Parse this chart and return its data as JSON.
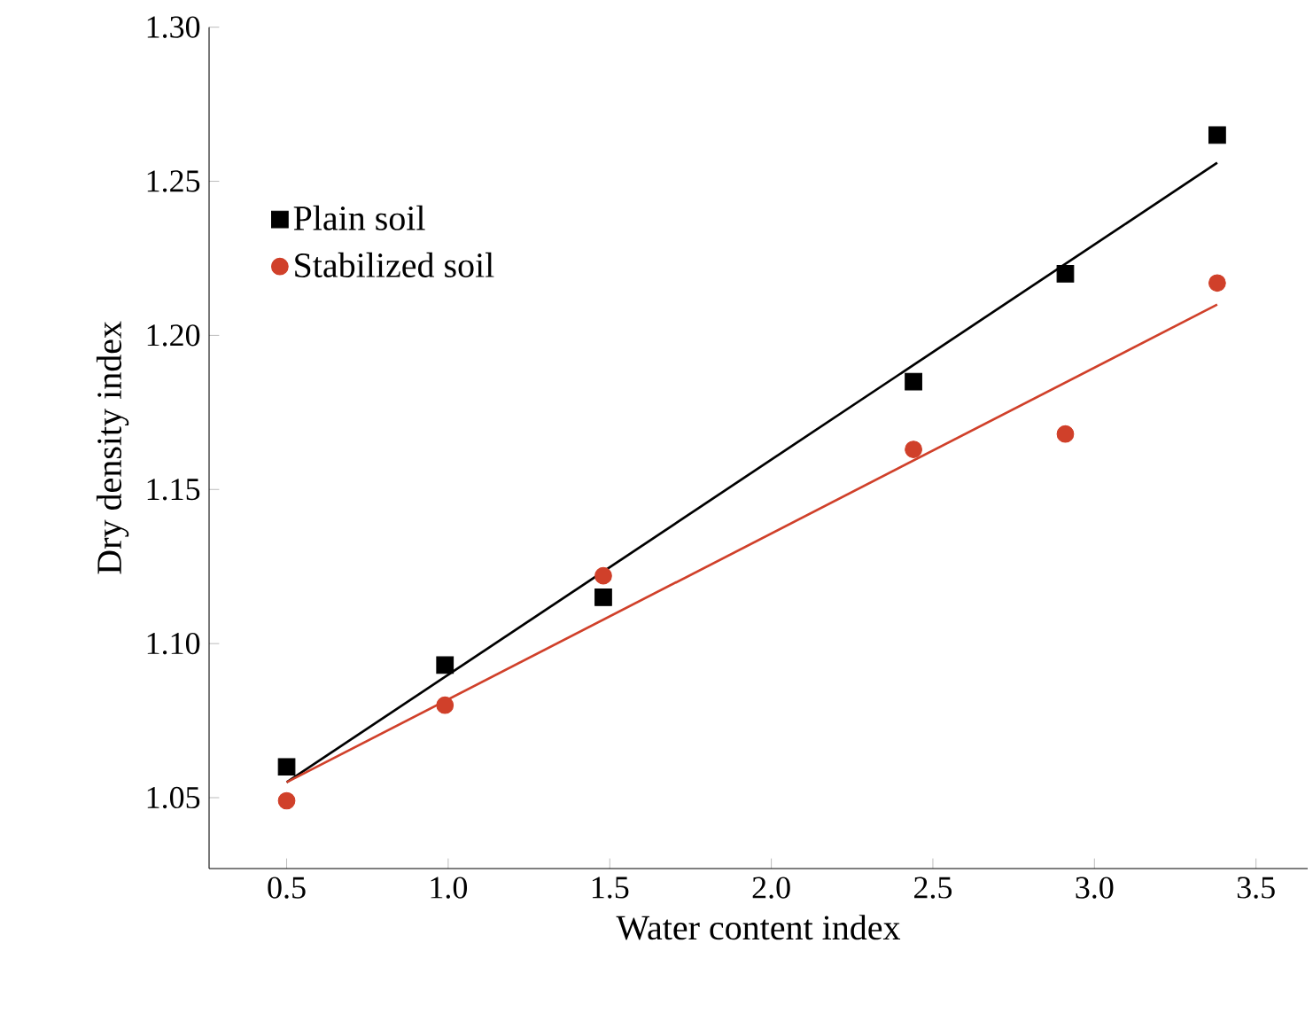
{
  "chart_data": {
    "type": "scatter",
    "xlabel": "Water content index",
    "ylabel": "Dry density index",
    "xlim": [
      0.26,
      3.66
    ],
    "xticks": [
      {
        "value": 0.5,
        "label": "0.5"
      },
      {
        "value": 1.0,
        "label": "1.0"
      },
      {
        "value": 1.5,
        "label": "1.5"
      },
      {
        "value": 2.0,
        "label": "2.0"
      },
      {
        "value": 2.5,
        "label": "2.5"
      },
      {
        "value": 3.0,
        "label": "3.0"
      },
      {
        "value": 3.5,
        "label": "3.5"
      }
    ],
    "ylim": [
      1.027,
      1.3
    ],
    "yticks": [
      {
        "value": 1.05,
        "label": "1.05"
      },
      {
        "value": 1.1,
        "label": "1.10"
      },
      {
        "value": 1.15,
        "label": "1.15"
      },
      {
        "value": 1.2,
        "label": "1.20"
      },
      {
        "value": 1.25,
        "label": "1.25"
      },
      {
        "value": 1.3,
        "label": "1.30"
      }
    ],
    "legend": "top left",
    "grid": false,
    "series": [
      {
        "name": "Plain soil",
        "color": "#000000",
        "marker": "square",
        "x": [
          0.5,
          0.99,
          1.48,
          2.44,
          2.91,
          3.38
        ],
        "values": [
          1.06,
          1.093,
          1.115,
          1.185,
          1.22,
          1.265
        ]
      },
      {
        "name": "Stabilized soil",
        "color": "#d0402a",
        "marker": "circle",
        "x": [
          0.5,
          0.99,
          1.48,
          2.44,
          2.91,
          3.38
        ],
        "values": [
          1.049,
          1.08,
          1.122,
          1.163,
          1.168,
          1.217
        ]
      },
      {
        "type": "line",
        "color": "#000000",
        "marker": "none",
        "x": [
          0.5,
          3.38
        ],
        "values": [
          1.055,
          1.256
        ]
      },
      {
        "type": "line",
        "color": "#d0402a",
        "marker": "none",
        "x": [
          0.5,
          3.38
        ],
        "values": [
          1.055,
          1.21
        ]
      }
    ]
  }
}
